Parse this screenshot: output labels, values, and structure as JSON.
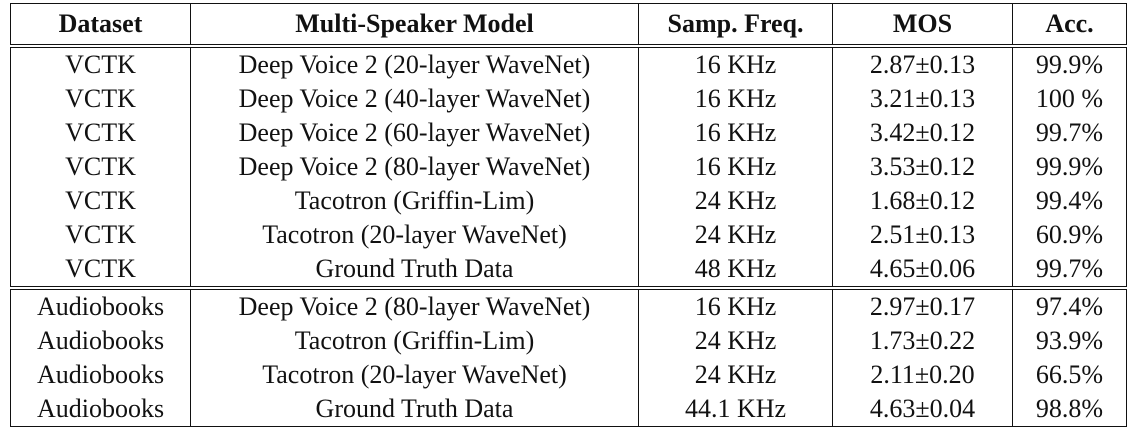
{
  "table": {
    "headers": [
      "Dataset",
      "Multi-Speaker Model",
      "Samp. Freq.",
      "MOS",
      "Acc."
    ],
    "groups": [
      {
        "rows": [
          [
            "VCTK",
            "Deep Voice 2 (20-layer WaveNet)",
            "16 KHz",
            "2.87±0.13",
            "99.9%"
          ],
          [
            "VCTK",
            "Deep Voice 2 (40-layer WaveNet)",
            "16 KHz",
            "3.21±0.13",
            "100 %"
          ],
          [
            "VCTK",
            "Deep Voice 2 (60-layer WaveNet)",
            "16 KHz",
            "3.42±0.12",
            "99.7%"
          ],
          [
            "VCTK",
            "Deep Voice 2 (80-layer WaveNet)",
            "16 KHz",
            "3.53±0.12",
            "99.9%"
          ],
          [
            "VCTK",
            "Tacotron (Griffin-Lim)",
            "24 KHz",
            "1.68±0.12",
            "99.4%"
          ],
          [
            "VCTK",
            "Tacotron (20-layer WaveNet)",
            "24 KHz",
            "2.51±0.13",
            "60.9%"
          ],
          [
            "VCTK",
            "Ground Truth Data",
            "48 KHz",
            "4.65±0.06",
            "99.7%"
          ]
        ]
      },
      {
        "rows": [
          [
            "Audiobooks",
            "Deep Voice 2 (80-layer WaveNet)",
            "16 KHz",
            "2.97±0.17",
            "97.4%"
          ],
          [
            "Audiobooks",
            "Tacotron (Griffin-Lim)",
            "24 KHz",
            "1.73±0.22",
            "93.9%"
          ],
          [
            "Audiobooks",
            "Tacotron (20-layer WaveNet)",
            "24 KHz",
            "2.11±0.20",
            "66.5%"
          ],
          [
            "Audiobooks",
            "Ground Truth Data",
            "44.1 KHz",
            "4.63±0.04",
            "98.8%"
          ]
        ]
      }
    ]
  }
}
